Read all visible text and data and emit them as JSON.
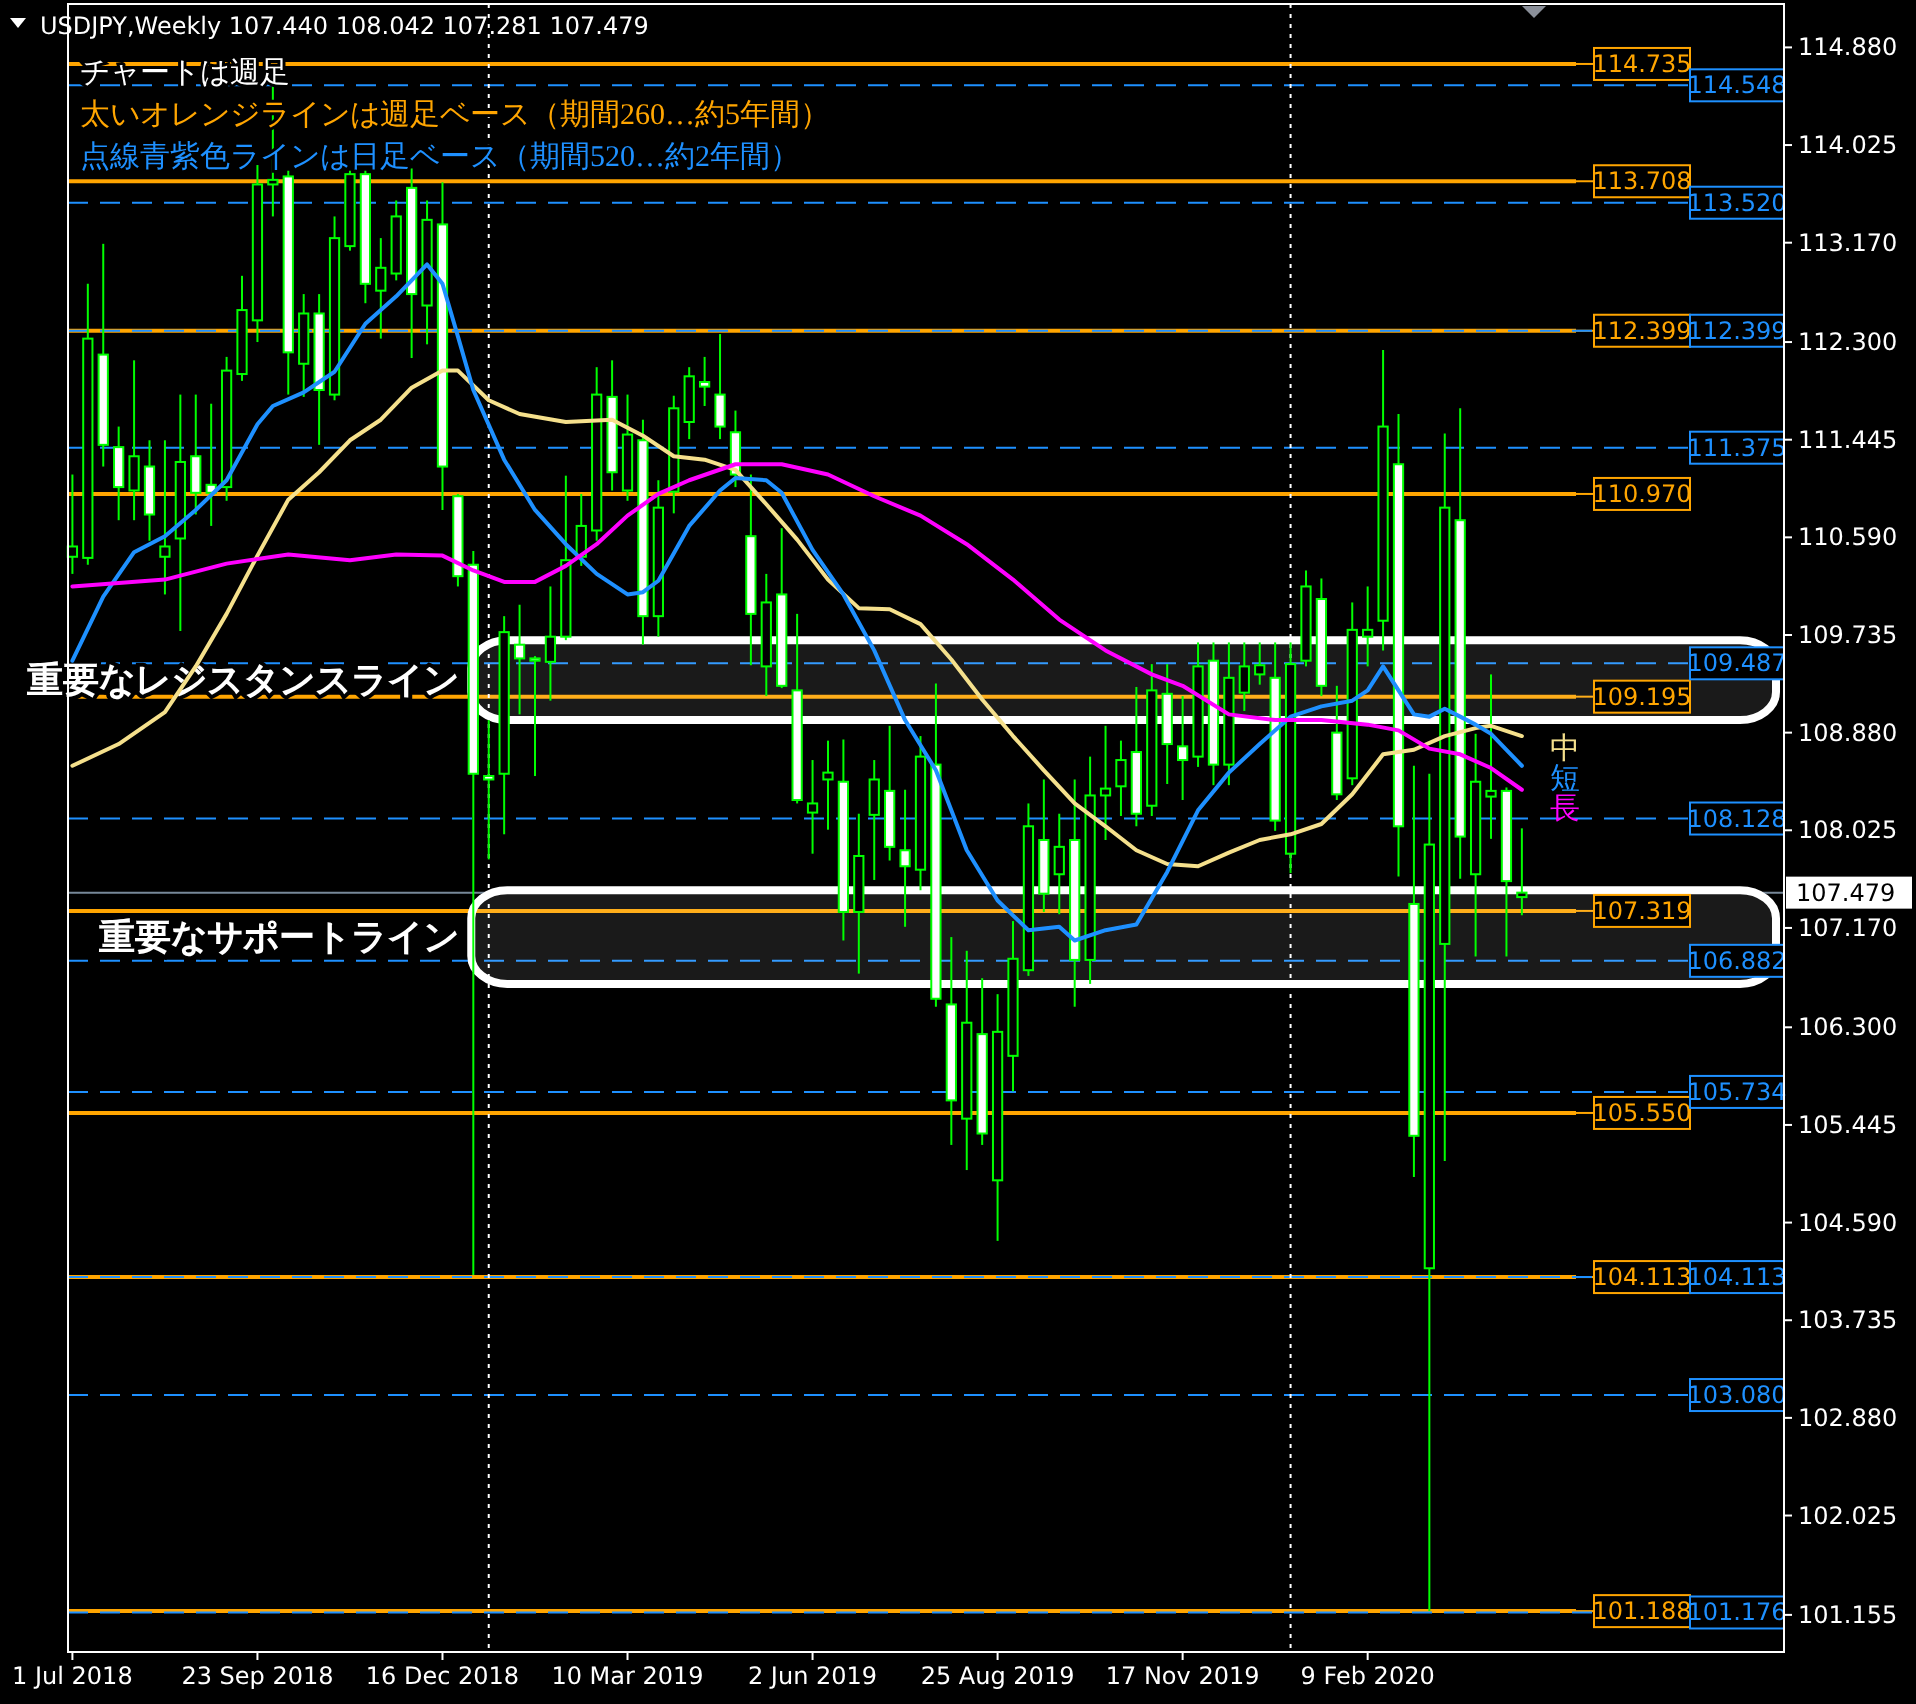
{
  "chart_data": {
    "type": "candlestick",
    "title": "USDJPY,Weekly 107.440 108.042 107.281 107.479",
    "annotations": [
      "チャートは週足",
      "太いオレンジラインは週足ベース（期間260…約5年間）",
      "点線青紫色ラインは日足ベース（期間520…約2年間）"
    ],
    "color": "#00ff00",
    "xlim": [
      "2018-06-29",
      "2020-08-16"
    ],
    "ylim": [
      100.83,
      115.26
    ],
    "xticks": [
      {
        "value": "2018-07-01",
        "label": "1 Jul 2018"
      },
      {
        "value": "2018-09-23",
        "label": "23 Sep 2018"
      },
      {
        "value": "2018-12-16",
        "label": "16 Dec 2018"
      },
      {
        "value": "2019-03-10",
        "label": "10 Mar 2019"
      },
      {
        "value": "2019-06-02",
        "label": "2 Jun 2019"
      },
      {
        "value": "2019-08-25",
        "label": "25 Aug 2019"
      },
      {
        "value": "2019-11-17",
        "label": "17 Nov 2019"
      },
      {
        "value": "2020-02-09",
        "label": "9 Feb 2020"
      }
    ],
    "yticks": [
      {
        "value": 114.88,
        "label": "114.880"
      },
      {
        "value": 114.025,
        "label": "114.025"
      },
      {
        "value": 113.17,
        "label": "113.170"
      },
      {
        "value": 112.3,
        "label": "112.300"
      },
      {
        "value": 111.445,
        "label": "111.445"
      },
      {
        "value": 110.59,
        "label": "110.590"
      },
      {
        "value": 109.735,
        "label": "109.735"
      },
      {
        "value": 108.88,
        "label": "108.880"
      },
      {
        "value": 108.025,
        "label": "108.025"
      },
      {
        "value": 107.17,
        "label": "107.170"
      },
      {
        "value": 106.3,
        "label": "106.300"
      },
      {
        "value": 105.445,
        "label": "105.445"
      },
      {
        "value": 104.59,
        "label": "104.590"
      },
      {
        "value": 103.735,
        "label": "103.735"
      },
      {
        "value": 102.88,
        "label": "102.880"
      },
      {
        "value": 102.025,
        "label": "102.025"
      },
      {
        "value": 101.155,
        "label": "101.155"
      }
    ],
    "x": [
      "2018-07-01",
      "2018-07-08",
      "2018-07-15",
      "2018-07-22",
      "2018-07-29",
      "2018-08-05",
      "2018-08-12",
      "2018-08-19",
      "2018-08-26",
      "2018-09-02",
      "2018-09-09",
      "2018-09-16",
      "2018-09-23",
      "2018-09-30",
      "2018-10-07",
      "2018-10-14",
      "2018-10-21",
      "2018-10-28",
      "2018-11-04",
      "2018-11-11",
      "2018-11-18",
      "2018-11-25",
      "2018-12-02",
      "2018-12-09",
      "2018-12-16",
      "2018-12-23",
      "2018-12-30",
      "2019-01-06",
      "2019-01-13",
      "2019-01-20",
      "2019-01-27",
      "2019-02-03",
      "2019-02-10",
      "2019-02-17",
      "2019-02-24",
      "2019-03-03",
      "2019-03-10",
      "2019-03-17",
      "2019-03-24",
      "2019-03-31",
      "2019-04-07",
      "2019-04-14",
      "2019-04-21",
      "2019-04-28",
      "2019-05-05",
      "2019-05-12",
      "2019-05-19",
      "2019-05-26",
      "2019-06-02",
      "2019-06-09",
      "2019-06-16",
      "2019-06-23",
      "2019-06-30",
      "2019-07-07",
      "2019-07-14",
      "2019-07-21",
      "2019-07-28",
      "2019-08-04",
      "2019-08-11",
      "2019-08-18",
      "2019-08-25",
      "2019-09-01",
      "2019-09-08",
      "2019-09-15",
      "2019-09-22",
      "2019-09-29",
      "2019-10-06",
      "2019-10-13",
      "2019-10-20",
      "2019-10-27",
      "2019-11-03",
      "2019-11-10",
      "2019-11-17",
      "2019-11-24",
      "2019-12-01",
      "2019-12-08",
      "2019-12-15",
      "2019-12-22",
      "2019-12-29",
      "2020-01-05",
      "2020-01-12",
      "2020-01-19",
      "2020-01-26",
      "2020-02-02",
      "2020-02-09",
      "2020-02-16",
      "2020-02-23",
      "2020-03-01",
      "2020-03-08",
      "2020-03-15",
      "2020-03-22",
      "2020-03-29",
      "2020-04-05",
      "2020-04-12",
      "2020-04-19"
    ],
    "ohlc": [
      [
        110.42,
        111.14,
        110.27,
        110.51
      ],
      [
        110.41,
        112.81,
        110.35,
        112.33
      ],
      [
        112.19,
        113.16,
        111.21,
        111.4
      ],
      [
        111.38,
        111.56,
        110.74,
        111.03
      ],
      [
        111.0,
        112.14,
        110.74,
        111.3
      ],
      [
        111.21,
        111.44,
        110.56,
        110.79
      ],
      [
        110.42,
        111.44,
        110.09,
        110.51
      ],
      [
        110.58,
        111.84,
        109.77,
        111.25
      ],
      [
        111.3,
        111.84,
        110.79,
        110.98
      ],
      [
        111.05,
        111.76,
        110.69,
        110.98
      ],
      [
        111.03,
        112.17,
        110.91,
        112.05
      ],
      [
        112.02,
        112.88,
        111.96,
        112.58
      ],
      [
        112.49,
        113.85,
        112.3,
        113.68
      ],
      [
        113.68,
        114.54,
        113.4,
        113.72
      ],
      [
        113.75,
        113.8,
        111.84,
        112.21
      ],
      [
        112.11,
        112.72,
        111.82,
        112.55
      ],
      [
        112.55,
        112.72,
        111.4,
        111.88
      ],
      [
        111.84,
        113.4,
        111.79,
        113.21
      ],
      [
        113.14,
        113.8,
        113.1,
        113.77
      ],
      [
        113.77,
        113.8,
        112.64,
        112.81
      ],
      [
        112.75,
        113.21,
        112.33,
        112.95
      ],
      [
        112.9,
        113.54,
        112.84,
        113.4
      ],
      [
        113.65,
        113.82,
        112.16,
        112.72
      ],
      [
        112.62,
        113.54,
        112.28,
        113.37
      ],
      [
        113.33,
        113.7,
        110.83,
        111.21
      ],
      [
        110.95,
        110.97,
        110.16,
        110.25
      ],
      [
        110.35,
        110.47,
        104.13,
        108.52
      ],
      [
        108.5,
        108.99,
        107.77,
        108.47
      ],
      [
        108.52,
        109.9,
        107.99,
        109.76
      ],
      [
        109.65,
        110.0,
        109.04,
        109.53
      ],
      [
        109.53,
        109.55,
        108.5,
        109.51
      ],
      [
        109.5,
        110.16,
        109.16,
        109.72
      ],
      [
        109.72,
        111.13,
        109.69,
        110.39
      ],
      [
        110.42,
        110.97,
        110.34,
        110.69
      ],
      [
        110.65,
        112.08,
        110.56,
        111.84
      ],
      [
        111.82,
        112.14,
        111.0,
        111.16
      ],
      [
        111.0,
        111.84,
        110.91,
        111.49
      ],
      [
        111.44,
        111.62,
        109.65,
        109.9
      ],
      [
        109.9,
        111.09,
        109.72,
        110.85
      ],
      [
        110.99,
        111.83,
        110.8,
        111.72
      ],
      [
        111.6,
        112.08,
        111.45,
        112.0
      ],
      [
        111.95,
        112.17,
        111.74,
        111.91
      ],
      [
        111.84,
        112.37,
        111.45,
        111.56
      ],
      [
        111.51,
        111.7,
        111.03,
        111.14
      ],
      [
        110.6,
        111.14,
        109.47,
        109.92
      ],
      [
        109.46,
        110.27,
        109.2,
        110.02
      ],
      [
        110.09,
        110.67,
        109.27,
        109.29
      ],
      [
        109.25,
        109.92,
        108.26,
        108.29
      ],
      [
        108.18,
        108.64,
        107.82,
        108.26
      ],
      [
        108.47,
        108.81,
        108.03,
        108.53
      ],
      [
        108.45,
        108.82,
        107.06,
        107.31
      ],
      [
        107.31,
        108.17,
        106.77,
        107.8
      ],
      [
        108.16,
        108.64,
        107.59,
        108.47
      ],
      [
        108.37,
        108.94,
        107.76,
        107.88
      ],
      [
        107.85,
        108.38,
        107.18,
        107.71
      ],
      [
        107.68,
        108.85,
        107.5,
        108.67
      ],
      [
        108.6,
        109.31,
        106.48,
        106.55
      ],
      [
        106.5,
        107.09,
        105.27,
        105.66
      ],
      [
        105.5,
        106.97,
        105.05,
        106.34
      ],
      [
        106.24,
        106.73,
        105.27,
        105.37
      ],
      [
        104.96,
        106.59,
        104.43,
        106.26
      ],
      [
        106.05,
        107.23,
        105.74,
        106.9
      ],
      [
        106.8,
        108.26,
        106.75,
        108.06
      ],
      [
        107.94,
        108.47,
        107.31,
        107.47
      ],
      [
        107.64,
        108.17,
        107.29,
        107.88
      ],
      [
        107.94,
        108.47,
        106.48,
        106.89
      ],
      [
        106.89,
        108.67,
        106.68,
        108.33
      ],
      [
        108.33,
        108.94,
        107.94,
        108.39
      ],
      [
        108.41,
        108.81,
        108.15,
        108.64
      ],
      [
        108.71,
        109.28,
        108.06,
        108.17
      ],
      [
        108.24,
        109.48,
        108.15,
        109.25
      ],
      [
        109.22,
        109.48,
        108.43,
        108.78
      ],
      [
        108.76,
        109.2,
        108.29,
        108.64
      ],
      [
        108.67,
        109.67,
        108.58,
        109.46
      ],
      [
        109.51,
        109.67,
        108.42,
        108.6
      ],
      [
        108.6,
        109.67,
        108.42,
        109.36
      ],
      [
        109.23,
        109.67,
        109.07,
        109.46
      ],
      [
        109.39,
        109.67,
        109.3,
        109.47
      ],
      [
        109.36,
        109.67,
        108.02,
        108.11
      ],
      [
        107.82,
        109.67,
        107.65,
        109.48
      ],
      [
        109.51,
        110.3,
        109.46,
        110.16
      ],
      [
        110.05,
        110.23,
        109.2,
        109.29
      ],
      [
        108.88,
        109.29,
        108.29,
        108.34
      ],
      [
        108.48,
        110.02,
        108.42,
        109.78
      ],
      [
        109.72,
        110.16,
        109.46,
        109.78
      ],
      [
        109.86,
        112.23,
        109.6,
        111.56
      ],
      [
        111.23,
        111.67,
        107.62,
        108.06
      ],
      [
        107.38,
        108.59,
        104.99,
        105.35
      ],
      [
        104.19,
        108.52,
        101.19,
        107.9
      ],
      [
        107.03,
        111.5,
        105.13,
        110.85
      ],
      [
        110.74,
        111.72,
        107.6,
        107.97
      ],
      [
        107.64,
        108.87,
        106.92,
        108.45
      ],
      [
        108.32,
        109.39,
        107.95,
        108.37
      ],
      [
        108.37,
        108.4,
        106.92,
        107.58
      ],
      [
        107.44,
        108.042,
        107.281,
        107.479
      ]
    ],
    "series": [
      {
        "type": "line",
        "name": "中",
        "color": "#f5e08c",
        "x": [
          "2018-07-01",
          "2018-07-22",
          "2018-08-12",
          "2018-08-26",
          "2018-09-09",
          "2018-09-23",
          "2018-10-07",
          "2018-10-21",
          "2018-11-04",
          "2018-11-18",
          "2018-12-02",
          "2018-12-16",
          "2018-12-23",
          "2019-01-06",
          "2019-01-20",
          "2019-02-10",
          "2019-03-03",
          "2019-03-17",
          "2019-03-31",
          "2019-04-14",
          "2019-04-28",
          "2019-05-12",
          "2019-05-26",
          "2019-06-09",
          "2019-06-23",
          "2019-07-07",
          "2019-07-21",
          "2019-08-04",
          "2019-08-18",
          "2019-09-01",
          "2019-09-15",
          "2019-09-29",
          "2019-10-13",
          "2019-10-27",
          "2019-11-10",
          "2019-11-24",
          "2019-12-08",
          "2019-12-22",
          "2020-01-05",
          "2020-01-19",
          "2020-02-02",
          "2020-02-16",
          "2020-03-01",
          "2020-03-15",
          "2020-03-29",
          "2020-04-05",
          "2020-04-19"
        ],
        "values": [
          108.59,
          108.78,
          109.06,
          109.46,
          109.92,
          110.43,
          110.92,
          111.16,
          111.44,
          111.62,
          111.9,
          112.05,
          112.05,
          111.79,
          111.67,
          111.6,
          111.62,
          111.48,
          111.3,
          111.27,
          111.18,
          110.88,
          110.57,
          110.22,
          109.97,
          109.96,
          109.83,
          109.52,
          109.17,
          108.85,
          108.55,
          108.26,
          108.06,
          107.85,
          107.73,
          107.71,
          107.83,
          107.94,
          107.99,
          108.08,
          108.34,
          108.69,
          108.73,
          108.85,
          108.92,
          108.94,
          108.85
        ]
      },
      {
        "type": "line",
        "name": "短",
        "color": "#1e90ff",
        "x": [
          "2018-07-01",
          "2018-07-15",
          "2018-07-29",
          "2018-08-12",
          "2018-08-26",
          "2018-09-09",
          "2018-09-23",
          "2018-09-30",
          "2018-10-14",
          "2018-10-28",
          "2018-11-11",
          "2018-11-25",
          "2018-12-09",
          "2018-12-16",
          "2018-12-23",
          "2018-12-30",
          "2019-01-13",
          "2019-01-27",
          "2019-02-10",
          "2019-02-24",
          "2019-03-10",
          "2019-03-17",
          "2019-03-24",
          "2019-04-07",
          "2019-04-21",
          "2019-04-28",
          "2019-05-12",
          "2019-05-19",
          "2019-06-02",
          "2019-06-16",
          "2019-06-30",
          "2019-07-14",
          "2019-07-28",
          "2019-08-11",
          "2019-08-25",
          "2019-09-08",
          "2019-09-22",
          "2019-09-29",
          "2019-10-13",
          "2019-10-27",
          "2019-11-10",
          "2019-11-24",
          "2019-12-08",
          "2019-12-22",
          "2020-01-05",
          "2020-01-19",
          "2020-02-02",
          "2020-02-09",
          "2020-02-16",
          "2020-02-23",
          "2020-03-01",
          "2020-03-08",
          "2020-03-15",
          "2020-03-22",
          "2020-03-29",
          "2020-04-05",
          "2020-04-12",
          "2020-04-19"
        ],
        "values": [
          109.51,
          110.07,
          110.46,
          110.6,
          110.83,
          111.09,
          111.58,
          111.74,
          111.86,
          112.04,
          112.46,
          112.7,
          112.98,
          112.81,
          112.35,
          111.88,
          111.27,
          110.83,
          110.53,
          110.27,
          110.09,
          110.11,
          110.21,
          110.69,
          111.0,
          111.11,
          111.09,
          110.98,
          110.48,
          110.09,
          109.6,
          108.99,
          108.55,
          107.85,
          107.41,
          107.15,
          107.18,
          107.06,
          107.15,
          107.2,
          107.66,
          108.2,
          108.53,
          108.78,
          109.02,
          109.11,
          109.16,
          109.25,
          109.46,
          109.25,
          109.04,
          109.02,
          109.09,
          109.02,
          108.95,
          108.87,
          108.73,
          108.59
        ]
      },
      {
        "type": "line",
        "name": "長",
        "color": "#ff00ff",
        "x": [
          "2018-07-01",
          "2018-08-12",
          "2018-09-09",
          "2018-10-07",
          "2018-11-04",
          "2018-11-25",
          "2018-12-16",
          "2018-12-30",
          "2019-01-13",
          "2019-01-27",
          "2019-02-10",
          "2019-02-24",
          "2019-03-10",
          "2019-03-24",
          "2019-04-07",
          "2019-04-28",
          "2019-05-19",
          "2019-06-09",
          "2019-06-30",
          "2019-07-21",
          "2019-08-11",
          "2019-09-01",
          "2019-09-22",
          "2019-10-13",
          "2019-11-03",
          "2019-11-17",
          "2019-12-08",
          "2019-12-29",
          "2020-01-19",
          "2020-02-09",
          "2020-02-23",
          "2020-03-08",
          "2020-03-22",
          "2020-04-05",
          "2020-04-19"
        ],
        "values": [
          110.16,
          110.22,
          110.36,
          110.44,
          110.39,
          110.44,
          110.43,
          110.3,
          110.2,
          110.2,
          110.34,
          110.53,
          110.78,
          110.97,
          111.09,
          111.23,
          111.23,
          111.14,
          110.95,
          110.78,
          110.53,
          110.22,
          109.87,
          109.6,
          109.39,
          109.29,
          109.04,
          108.99,
          108.99,
          108.95,
          108.9,
          108.74,
          108.69,
          108.57,
          108.38
        ]
      }
    ],
    "ref_lines": [
      {
        "axis": "y",
        "value": 114.735,
        "label": "114.735",
        "color": "#ffa500",
        "line_style": "solid"
      },
      {
        "axis": "y",
        "value": 113.708,
        "label": "113.708",
        "color": "#ffa500",
        "line_style": "solid"
      },
      {
        "axis": "y",
        "value": 112.399,
        "label": "112.399",
        "color": "#ffa500",
        "line_style": "solid"
      },
      {
        "axis": "y",
        "value": 110.97,
        "label": "110.970",
        "color": "#ffa500",
        "line_style": "solid"
      },
      {
        "axis": "y",
        "value": 109.195,
        "label": "109.195",
        "color": "#ffa500",
        "line_style": "solid"
      },
      {
        "axis": "y",
        "value": 107.319,
        "label": "107.319",
        "color": "#ffa500",
        "line_style": "solid"
      },
      {
        "axis": "y",
        "value": 105.55,
        "label": "105.550",
        "color": "#ffa500",
        "line_style": "solid"
      },
      {
        "axis": "y",
        "value": 104.113,
        "label": "104.113",
        "color": "#ffa500",
        "line_style": "solid"
      },
      {
        "axis": "y",
        "value": 101.188,
        "label": "101.188",
        "color": "#ffa500",
        "line_style": "solid"
      },
      {
        "axis": "y",
        "value": 114.548,
        "label": "114.548",
        "color": "#1e90ff",
        "line_style": "dashed"
      },
      {
        "axis": "y",
        "value": 113.52,
        "label": "113.520",
        "color": "#1e90ff",
        "line_style": "dashed"
      },
      {
        "axis": "y",
        "value": 112.399,
        "label": "112.399",
        "color": "#1e90ff",
        "line_style": "dashed"
      },
      {
        "axis": "y",
        "value": 111.375,
        "label": "111.375",
        "color": "#1e90ff",
        "line_style": "dashed"
      },
      {
        "axis": "y",
        "value": 109.487,
        "label": "109.487",
        "color": "#1e90ff",
        "line_style": "dashed"
      },
      {
        "axis": "y",
        "value": 108.128,
        "label": "108.128",
        "color": "#1e90ff",
        "line_style": "dashed"
      },
      {
        "axis": "y",
        "value": 106.882,
        "label": "106.882",
        "color": "#1e90ff",
        "line_style": "dashed"
      },
      {
        "axis": "y",
        "value": 105.734,
        "label": "105.734",
        "color": "#1e90ff",
        "line_style": "dashed"
      },
      {
        "axis": "y",
        "value": 104.113,
        "label": "104.113",
        "color": "#1e90ff",
        "line_style": "dashed"
      },
      {
        "axis": "y",
        "value": 103.08,
        "label": "103.080",
        "color": "#1e90ff",
        "line_style": "dashed"
      },
      {
        "axis": "y",
        "value": 101.176,
        "label": "101.176",
        "color": "#1e90ff",
        "line_style": "dashed"
      },
      {
        "axis": "y",
        "value": 107.479,
        "label": "107.479",
        "color": "#778899"
      },
      {
        "axis": "x",
        "value": "2019-01-06",
        "color": "#ffffff",
        "line_style": "dotted"
      },
      {
        "axis": "x",
        "value": "2020-01-05",
        "color": "#ffffff",
        "line_style": "dotted"
      }
    ],
    "bands": [
      {
        "axis": "y",
        "from": 108.99,
        "to": 109.69,
        "label": "重要なレジスタンスライン",
        "color": "#ffffff"
      },
      {
        "axis": "y",
        "from": 106.68,
        "to": 107.5,
        "label": "重要なサポートライン",
        "color": "#ffffff"
      }
    ]
  }
}
